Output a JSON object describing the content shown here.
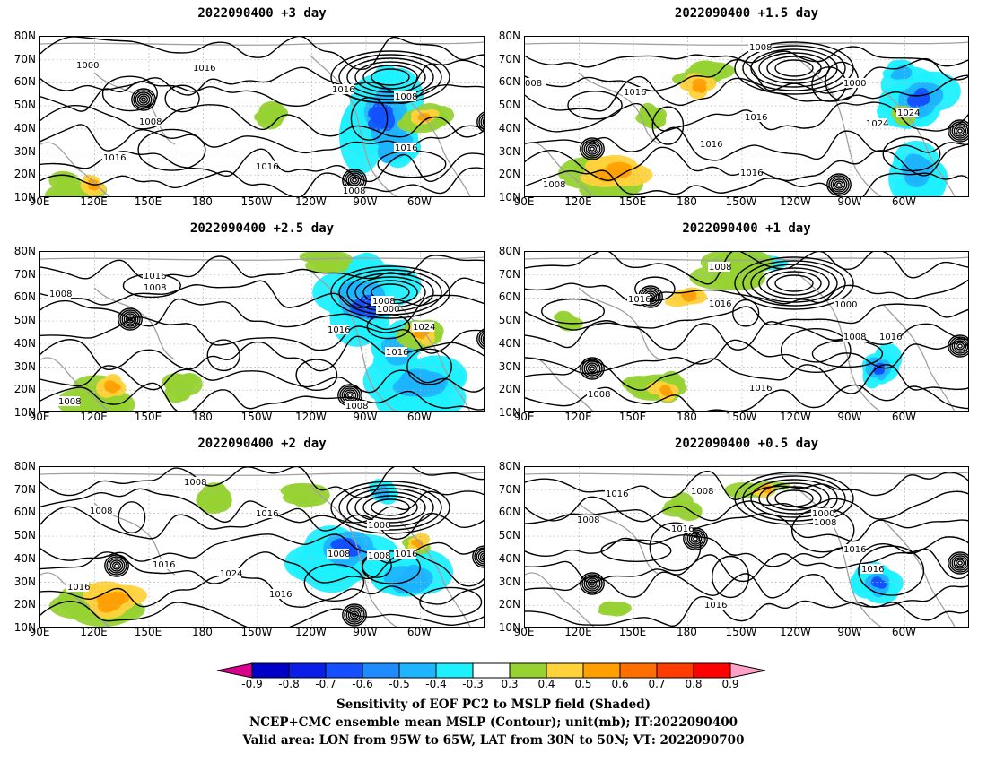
{
  "panels": [
    {
      "title": "2022090400  +3 day"
    },
    {
      "title": "2022090400  +1.5 day"
    },
    {
      "title": "2022090400  +2.5 day"
    },
    {
      "title": "2022090400  +1 day"
    },
    {
      "title": "2022090400  +2 day"
    },
    {
      "title": "2022090400  +0.5 day"
    }
  ],
  "axes": {
    "lat_ticks": [
      "80N",
      "70N",
      "60N",
      "50N",
      "40N",
      "30N",
      "20N",
      "10N"
    ],
    "lon_ticks": [
      "90E",
      "120E",
      "150E",
      "180",
      "150W",
      "120W",
      "90W",
      "60W"
    ]
  },
  "contour_labels": {
    "p0": [
      "1000",
      "1016",
      "1016",
      "1008",
      "1008",
      "1016",
      "1016",
      "1016",
      "1008"
    ],
    "p1": [
      "1008",
      "008",
      "1016",
      "1000",
      "1024",
      "1016",
      "1024",
      "1016",
      "1016",
      "1008"
    ],
    "p2": [
      "1008",
      "1016",
      "1008",
      "1000",
      "1008",
      "1016",
      "1024",
      "1016",
      "1008",
      "1008"
    ],
    "p3": [
      "1008",
      "1016",
      "1016",
      "1000",
      "1008",
      "1016",
      "1016",
      "1008"
    ],
    "p4": [
      "1008",
      "1008",
      "1016",
      "1016",
      "1000",
      "1008",
      "1008",
      "1016",
      "1024",
      "1016",
      "1016"
    ],
    "p5": [
      "1016",
      "1008",
      "1008",
      "1016",
      "1000",
      "1008",
      "1016",
      "1016",
      "1016"
    ]
  },
  "colorbar": {
    "colors": [
      "#d9008d",
      "#0000c8",
      "#0a1ee8",
      "#1450ff",
      "#1e8cff",
      "#1eb4ff",
      "#1ef0ff",
      "#ffffff",
      "#96d232",
      "#ffd23c",
      "#ffa000",
      "#ff6e00",
      "#ff3c00",
      "#ff0000",
      "#ffa0c8"
    ],
    "labels": [
      "-0.9",
      "-0.8",
      "-0.7",
      "-0.6",
      "-0.5",
      "-0.4",
      "-0.3",
      "0.3",
      "0.4",
      "0.5",
      "0.6",
      "0.7",
      "0.8",
      "0.9"
    ]
  },
  "caption": {
    "line1": "Sensitivity of EOF PC2 to MSLP field (Shaded)",
    "line2": "NCEP+CMC ensemble mean MSLP (Contour); unit(mb); IT:2022090400",
    "line3": "Valid area: LON from 95W to 65W, LAT from 30N to 50N; VT: 2022090700"
  }
}
